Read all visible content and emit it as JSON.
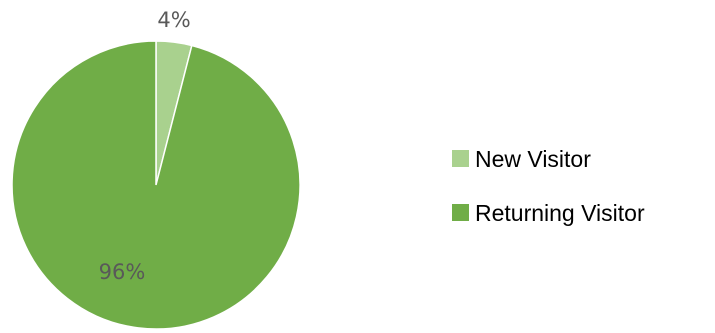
{
  "chart_data": {
    "type": "pie",
    "categories": [
      "New Visitor",
      "Returning Visitor"
    ],
    "values": [
      4,
      96
    ],
    "data_labels": [
      "4%",
      "96%"
    ],
    "colors": [
      "#a9d18e",
      "#70ad47"
    ],
    "start_angle_deg": 0,
    "direction": "clockwise",
    "legend": {
      "position": "right",
      "entries": [
        "New Visitor",
        "Returning Visitor"
      ]
    }
  }
}
